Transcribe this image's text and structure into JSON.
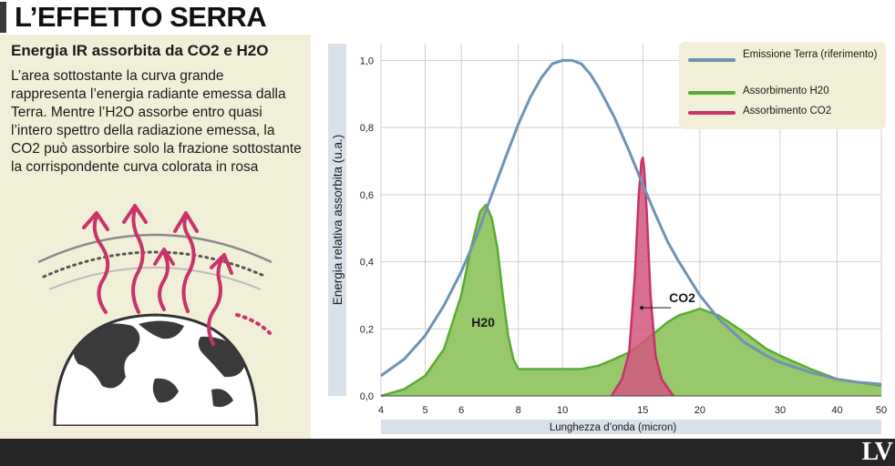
{
  "header": {
    "title": "L’EFFETTO SERRA"
  },
  "panel": {
    "subtitle": "Energia IR assorbita da CO2 e H2O",
    "description": "L’area sottostante la curva grande rappresenta l’energia radiante emessa dalla Terra. Mentre l’H2O assorbe entro quasi l’intero spettro della radiazione emessa, la CO2 può assorbire solo la frazione sottostante la corrispondente curva colorata in rosa",
    "illustration_icon": "earth-greenhouse-icon"
  },
  "footer": {
    "logo": "LV"
  },
  "colors": {
    "emission": "#6f93b3",
    "h2o_line": "#5aab34",
    "h2o_fill": "#97c96c",
    "co2_line": "#c8336a",
    "co2_fill": "#d2577f",
    "legend_bg": "#f2efd9",
    "axis_band": "#d9e2ea",
    "panel_bg": "#f2efd9"
  },
  "chart_data": {
    "type": "area",
    "xlabel": "Lunghezza d’onda (micron)",
    "ylabel": "Energia relativa assorbita (u.a.)",
    "xscale": "log",
    "xlim": [
      4,
      50
    ],
    "ylim": [
      0,
      1.05
    ],
    "x_ticks": [
      4,
      5,
      6,
      8,
      10,
      15,
      20,
      30,
      40,
      50
    ],
    "x_tick_labels": [
      "4",
      "5",
      "6",
      "8",
      "10",
      "15",
      "20",
      "30",
      "40",
      "50"
    ],
    "y_ticks": [
      0,
      0.2,
      0.4,
      0.6,
      0.8,
      1.0
    ],
    "y_tick_labels": [
      "0,0",
      "0,2",
      "0,4",
      "0,6",
      "0,8",
      "1,0"
    ],
    "grid": true,
    "legend_position": "top-right",
    "annotations": [
      {
        "text": "H20",
        "x": 6.7,
        "y": 0.22
      },
      {
        "text": "CO2",
        "x": 15.2,
        "y": 0.29
      }
    ],
    "series": [
      {
        "name": "Emissione Terra (riferimento)",
        "style": "line",
        "x": [
          4,
          4.5,
          5,
          5.5,
          6,
          6.5,
          7,
          7.5,
          8,
          8.5,
          9,
          9.5,
          10,
          10.5,
          11,
          11.5,
          12,
          13,
          14,
          15,
          16,
          17,
          18,
          20,
          22,
          25,
          28,
          30,
          35,
          40,
          45,
          50
        ],
        "y": [
          0.06,
          0.11,
          0.18,
          0.27,
          0.37,
          0.48,
          0.6,
          0.71,
          0.81,
          0.89,
          0.95,
          0.99,
          1.0,
          1.0,
          0.99,
          0.96,
          0.92,
          0.83,
          0.73,
          0.63,
          0.54,
          0.46,
          0.4,
          0.3,
          0.23,
          0.16,
          0.12,
          0.1,
          0.07,
          0.05,
          0.04,
          0.035
        ]
      },
      {
        "name": "Assorbimento H20",
        "style": "area",
        "x": [
          4,
          4.5,
          5,
          5.5,
          6,
          6.3,
          6.6,
          6.8,
          7,
          7.2,
          7.4,
          7.6,
          7.8,
          8,
          8.5,
          9,
          9.5,
          10,
          10.5,
          11,
          12,
          13,
          14,
          15,
          16,
          17,
          18,
          19,
          20,
          22,
          25,
          28,
          30,
          35,
          40,
          45,
          50
        ],
        "y": [
          0.0,
          0.02,
          0.06,
          0.14,
          0.3,
          0.44,
          0.55,
          0.57,
          0.53,
          0.44,
          0.3,
          0.18,
          0.11,
          0.08,
          0.08,
          0.08,
          0.08,
          0.08,
          0.08,
          0.08,
          0.09,
          0.11,
          0.13,
          0.16,
          0.19,
          0.22,
          0.24,
          0.25,
          0.26,
          0.24,
          0.19,
          0.14,
          0.12,
          0.08,
          0.05,
          0.04,
          0.03
        ]
      },
      {
        "name": "Assorbimento CO2",
        "style": "area",
        "x": [
          12.8,
          13.5,
          14,
          14.4,
          14.7,
          14.9,
          15,
          15.1,
          15.3,
          15.6,
          16,
          16.5,
          17.5
        ],
        "y": [
          0.0,
          0.05,
          0.13,
          0.35,
          0.6,
          0.7,
          0.71,
          0.68,
          0.55,
          0.3,
          0.12,
          0.05,
          0.0
        ]
      }
    ]
  },
  "legend": {
    "items": [
      {
        "label": "Emissione Terra (riferimento)"
      },
      {
        "label": "Assorbimento H20"
      },
      {
        "label": "Assorbimento CO2"
      }
    ]
  }
}
